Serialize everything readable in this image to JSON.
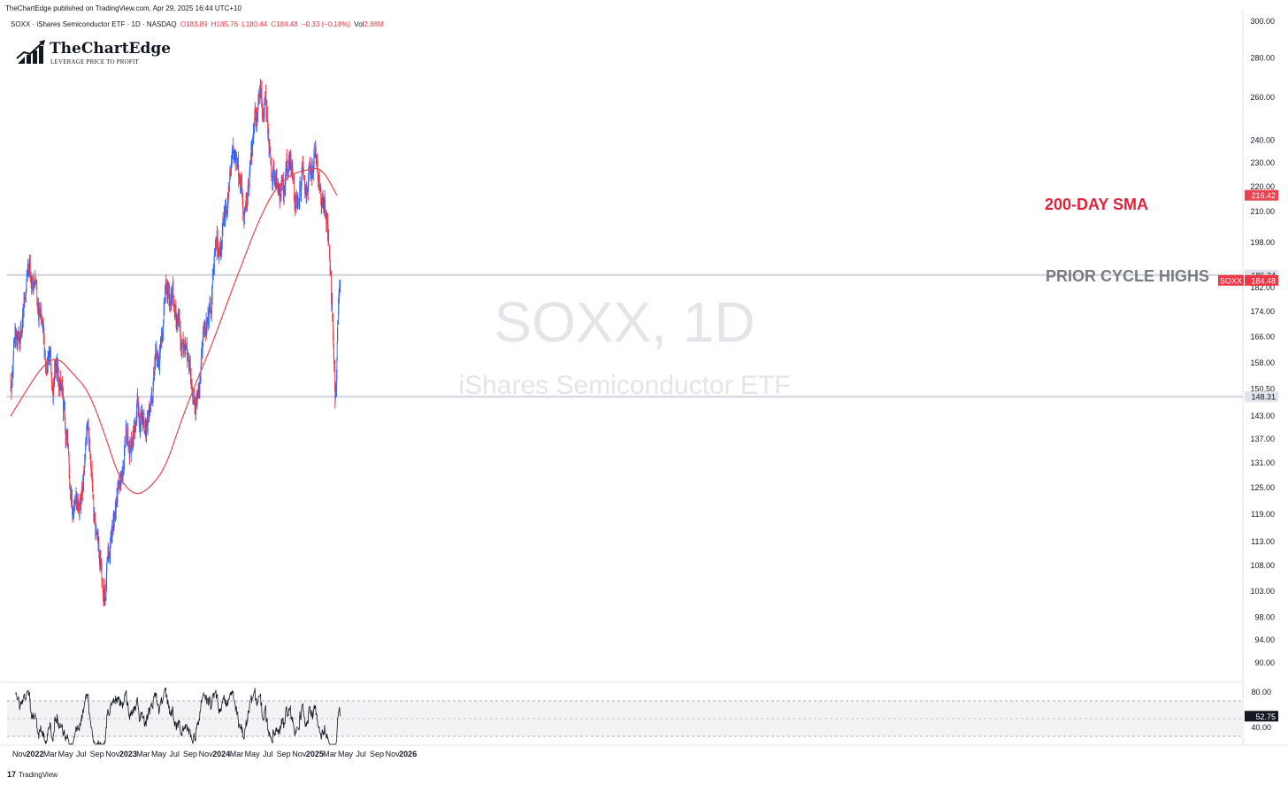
{
  "header": {
    "published": "TheChartEdge published on TradingView.com, Apr 29, 2025 16:44 UTC+10",
    "symbol_line": "SOXX · iShares Semiconductor ETF · 1D · NASDAQ",
    "open": "O183.89",
    "high": "H185.76",
    "low": "L180.44",
    "close": "C184.48",
    "change": "−0.33 (−0.18%)",
    "volume_label": "Vol",
    "volume": "2.88M"
  },
  "logo": {
    "name": "TheChartEdge",
    "tagline": "LEVERAGE PRICE TO PROFIT"
  },
  "watermark": {
    "symbol": "SOXX, 1D",
    "name": "iShares Semiconductor ETF"
  },
  "annotations": {
    "sma_label": "200-DAY SMA",
    "cycle_label": "PRIOR CYCLE HIGHS"
  },
  "footer": {
    "brand": "TradingView"
  },
  "colors": {
    "up": "#2962ff",
    "down": "#f23645",
    "sma": "#e8434e",
    "level": "#cfd2d8",
    "sma_text": "#e2213a",
    "cycle_text": "#787b86"
  },
  "chart_data": [
    {
      "type": "line",
      "scale": "log",
      "ylim": [
        88,
        302
      ],
      "x_axis_ticks": [
        "Nov",
        "2022",
        "Mar",
        "May",
        "Jul",
        "Sep",
        "Nov",
        "2023",
        "Mar",
        "May",
        "Jul",
        "Sep",
        "Nov",
        "2024",
        "Mar",
        "May",
        "Jul",
        "Sep",
        "Nov",
        "2025",
        "Mar",
        "May",
        "Jul",
        "Sep",
        "Nov",
        "2026"
      ],
      "y_axis_ticks": [
        "300.00",
        "280.00",
        "260.00",
        "240.00",
        "230.00",
        "220.00",
        "210.00",
        "198.00",
        "182.00",
        "174.00",
        "166.00",
        "158.00",
        "150.50",
        "143.00",
        "137.00",
        "131.00",
        "125.00",
        "119.00",
        "113.00",
        "108.00",
        "103.00",
        "98.00",
        "94.00",
        "90.00"
      ],
      "y_axis_tick_values": [
        300,
        280,
        260,
        240,
        230,
        220,
        210,
        198,
        182,
        174,
        166,
        158,
        150.5,
        143,
        137,
        131,
        125,
        119,
        113,
        108,
        103,
        98,
        94,
        90
      ],
      "horizontal_levels": [
        186.34,
        148.31
      ],
      "horizontal_level_labels": [
        "186.34",
        "148.31"
      ],
      "last_price": 184.48,
      "last_price_label": "184.48",
      "last_price_tag": "SOXX",
      "sma_value": 216.42,
      "sma_value_label": "216.42",
      "price_path": [
        [
          "2021-10",
          152
        ],
        [
          "2021-11",
          168
        ],
        [
          "2021-12",
          178
        ],
        [
          "2022-01",
          186
        ],
        [
          "2022-02",
          166
        ],
        [
          "2022-03",
          155
        ],
        [
          "2022-04",
          162
        ],
        [
          "2022-05",
          140
        ],
        [
          "2022-06",
          120
        ],
        [
          "2022-07",
          118
        ],
        [
          "2022-08",
          140
        ],
        [
          "2022-09",
          116
        ],
        [
          "2022-10",
          100
        ],
        [
          "2022-11",
          116
        ],
        [
          "2022-12",
          123
        ],
        [
          "2023-01",
          138
        ],
        [
          "2023-02",
          143
        ],
        [
          "2023-03",
          142
        ],
        [
          "2023-04",
          142
        ],
        [
          "2023-05",
          162
        ],
        [
          "2023-06",
          176
        ],
        [
          "2023-07",
          178
        ],
        [
          "2023-08",
          168
        ],
        [
          "2023-09",
          158
        ],
        [
          "2023-10",
          150
        ],
        [
          "2023-11",
          168
        ],
        [
          "2023-12",
          186
        ],
        [
          "2024-01",
          200
        ],
        [
          "2024-02",
          220
        ],
        [
          "2024-03",
          236
        ],
        [
          "2024-04",
          208
        ],
        [
          "2024-05",
          232
        ],
        [
          "2024-06",
          258
        ],
        [
          "2024-07",
          250
        ],
        [
          "2024-08",
          224
        ],
        [
          "2024-09",
          222
        ],
        [
          "2024-10",
          228
        ],
        [
          "2024-11",
          218
        ],
        [
          "2024-12",
          222
        ],
        [
          "2025-01",
          228
        ],
        [
          "2025-02",
          222
        ],
        [
          "2025-03",
          200
        ],
        [
          "2025-04-08",
          148
        ],
        [
          "2025-04-28",
          184.48
        ]
      ],
      "sma_200": [
        [
          "2021-10",
          143
        ],
        [
          "2021-12",
          150
        ],
        [
          "2022-02",
          157
        ],
        [
          "2022-04",
          160
        ],
        [
          "2022-06",
          155
        ],
        [
          "2022-08",
          150
        ],
        [
          "2022-10",
          139
        ],
        [
          "2022-12",
          127
        ],
        [
          "2023-02",
          123
        ],
        [
          "2023-04",
          125
        ],
        [
          "2023-06",
          130
        ],
        [
          "2023-08",
          142
        ],
        [
          "2023-10",
          153
        ],
        [
          "2023-12",
          164
        ],
        [
          "2024-02",
          178
        ],
        [
          "2024-04",
          192
        ],
        [
          "2024-06",
          207
        ],
        [
          "2024-08",
          219
        ],
        [
          "2024-10",
          225
        ],
        [
          "2024-12",
          227
        ],
        [
          "2025-02",
          228
        ],
        [
          "2025-04",
          216.42
        ]
      ]
    },
    {
      "type": "line",
      "indicator": "RSI",
      "ylim": [
        20,
        90
      ],
      "y_axis_ticks": [
        "80.00",
        "40.00"
      ],
      "y_axis_tick_values": [
        80,
        40
      ],
      "bands": [
        70,
        50,
        30
      ],
      "last_value": 52.75,
      "last_value_label": "52.75"
    }
  ]
}
